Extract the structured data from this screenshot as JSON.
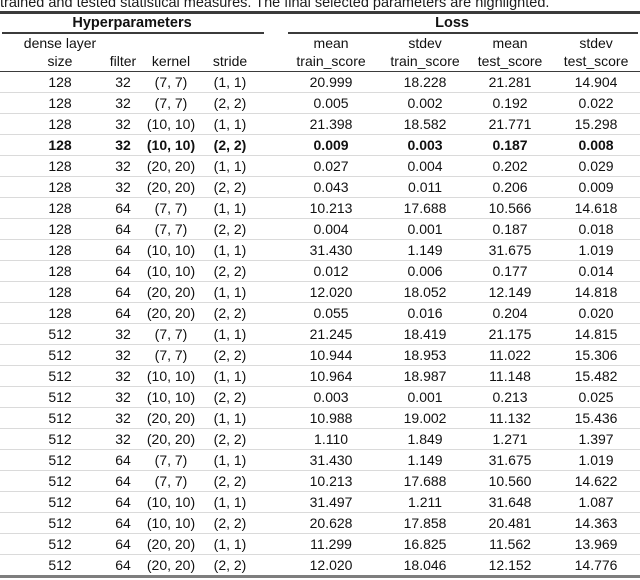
{
  "caption": "trained and tested statistical measures. The final selected parameters are highlighted.",
  "table": {
    "groups": [
      {
        "label": "Hyperparameters"
      },
      {
        "label": "Loss"
      }
    ],
    "columns": [
      {
        "line1": "dense layer",
        "line2": "size"
      },
      {
        "line1": "",
        "line2": "filter"
      },
      {
        "line1": "",
        "line2": "kernel"
      },
      {
        "line1": "",
        "line2": "stride"
      },
      {
        "line1": "mean",
        "line2": "train_score"
      },
      {
        "line1": "stdev",
        "line2": "train_score"
      },
      {
        "line1": "mean",
        "line2": "test_score"
      },
      {
        "line1": "stdev",
        "line2": "test_score"
      }
    ],
    "rows": [
      {
        "highlight": false,
        "cells": [
          "128",
          "32",
          "(7, 7)",
          "(1, 1)",
          "20.999",
          "18.228",
          "21.281",
          "14.904"
        ]
      },
      {
        "highlight": false,
        "cells": [
          "128",
          "32",
          "(7, 7)",
          "(2, 2)",
          "0.005",
          "0.002",
          "0.192",
          "0.022"
        ]
      },
      {
        "highlight": false,
        "cells": [
          "128",
          "32",
          "(10, 10)",
          "(1, 1)",
          "21.398",
          "18.582",
          "21.771",
          "15.298"
        ]
      },
      {
        "highlight": true,
        "cells": [
          "128",
          "32",
          "(10, 10)",
          "(2, 2)",
          "0.009",
          "0.003",
          "0.187",
          "0.008"
        ]
      },
      {
        "highlight": false,
        "cells": [
          "128",
          "32",
          "(20, 20)",
          "(1, 1)",
          "0.027",
          "0.004",
          "0.202",
          "0.029"
        ]
      },
      {
        "highlight": false,
        "cells": [
          "128",
          "32",
          "(20, 20)",
          "(2, 2)",
          "0.043",
          "0.011",
          "0.206",
          "0.009"
        ]
      },
      {
        "highlight": false,
        "cells": [
          "128",
          "64",
          "(7, 7)",
          "(1, 1)",
          "10.213",
          "17.688",
          "10.566",
          "14.618"
        ]
      },
      {
        "highlight": false,
        "cells": [
          "128",
          "64",
          "(7, 7)",
          "(2, 2)",
          "0.004",
          "0.001",
          "0.187",
          "0.018"
        ]
      },
      {
        "highlight": false,
        "cells": [
          "128",
          "64",
          "(10, 10)",
          "(1, 1)",
          "31.430",
          "1.149",
          "31.675",
          "1.019"
        ]
      },
      {
        "highlight": false,
        "cells": [
          "128",
          "64",
          "(10, 10)",
          "(2, 2)",
          "0.012",
          "0.006",
          "0.177",
          "0.014"
        ]
      },
      {
        "highlight": false,
        "cells": [
          "128",
          "64",
          "(20, 20)",
          "(1, 1)",
          "12.020",
          "18.052",
          "12.149",
          "14.818"
        ]
      },
      {
        "highlight": false,
        "cells": [
          "128",
          "64",
          "(20, 20)",
          "(2, 2)",
          "0.055",
          "0.016",
          "0.204",
          "0.020"
        ]
      },
      {
        "highlight": false,
        "cells": [
          "512",
          "32",
          "(7, 7)",
          "(1, 1)",
          "21.245",
          "18.419",
          "21.175",
          "14.815"
        ]
      },
      {
        "highlight": false,
        "cells": [
          "512",
          "32",
          "(7, 7)",
          "(2, 2)",
          "10.944",
          "18.953",
          "11.022",
          "15.306"
        ]
      },
      {
        "highlight": false,
        "cells": [
          "512",
          "32",
          "(10, 10)",
          "(1, 1)",
          "10.964",
          "18.987",
          "11.148",
          "15.482"
        ]
      },
      {
        "highlight": false,
        "cells": [
          "512",
          "32",
          "(10, 10)",
          "(2, 2)",
          "0.003",
          "0.001",
          "0.213",
          "0.025"
        ]
      },
      {
        "highlight": false,
        "cells": [
          "512",
          "32",
          "(20, 20)",
          "(1, 1)",
          "10.988",
          "19.002",
          "11.132",
          "15.436"
        ]
      },
      {
        "highlight": false,
        "cells": [
          "512",
          "32",
          "(20, 20)",
          "(2, 2)",
          "1.110",
          "1.849",
          "1.271",
          "1.397"
        ]
      },
      {
        "highlight": false,
        "cells": [
          "512",
          "64",
          "(7, 7)",
          "(1, 1)",
          "31.430",
          "1.149",
          "31.675",
          "1.019"
        ]
      },
      {
        "highlight": false,
        "cells": [
          "512",
          "64",
          "(7, 7)",
          "(2, 2)",
          "10.213",
          "17.688",
          "10.560",
          "14.622"
        ]
      },
      {
        "highlight": false,
        "cells": [
          "512",
          "64",
          "(10, 10)",
          "(1, 1)",
          "31.497",
          "1.211",
          "31.648",
          "1.087"
        ]
      },
      {
        "highlight": false,
        "cells": [
          "512",
          "64",
          "(10, 10)",
          "(2, 2)",
          "20.628",
          "17.858",
          "20.481",
          "14.363"
        ]
      },
      {
        "highlight": false,
        "cells": [
          "512",
          "64",
          "(20, 20)",
          "(1, 1)",
          "11.299",
          "16.825",
          "11.562",
          "13.969"
        ]
      },
      {
        "highlight": false,
        "cells": [
          "512",
          "64",
          "(20, 20)",
          "(2, 2)",
          "12.020",
          "18.046",
          "12.152",
          "14.776"
        ]
      }
    ]
  }
}
